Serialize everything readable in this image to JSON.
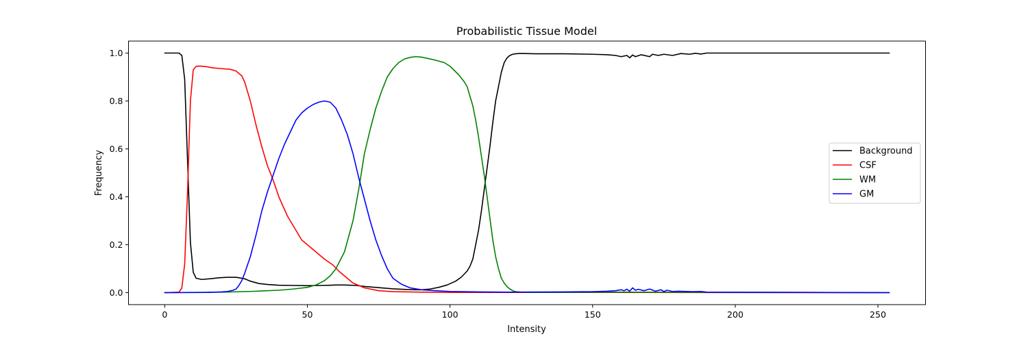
{
  "chart_data": {
    "type": "line",
    "title": "Probabilistic Tissue Model",
    "xlabel": "Intensity",
    "ylabel": "Frequency",
    "xlim": [
      -12.7,
      266.7
    ],
    "ylim": [
      -0.05,
      1.05
    ],
    "xticks": [
      0,
      50,
      100,
      150,
      200,
      250
    ],
    "yticks": [
      0.0,
      0.2,
      0.4,
      0.6,
      0.8,
      1.0
    ],
    "xtick_labels": [
      "0",
      "50",
      "100",
      "150",
      "200",
      "250"
    ],
    "ytick_labels": [
      "0.0",
      "0.2",
      "0.4",
      "0.6",
      "0.8",
      "1.0"
    ],
    "grid": false,
    "legend_position": "center-right",
    "series": [
      {
        "name": "Background",
        "color": "#000000",
        "x": [
          0,
          5,
          6,
          7,
          8,
          9,
          10,
          11,
          13,
          16,
          19,
          22,
          25,
          28,
          30,
          33,
          36,
          40,
          45,
          50,
          55,
          58,
          60,
          63,
          67,
          70,
          75,
          80,
          85,
          88,
          90,
          93,
          96,
          99,
          102,
          104,
          106,
          107,
          108,
          109,
          110,
          111,
          112,
          113,
          114,
          115,
          116,
          117,
          118,
          119,
          120,
          121,
          122,
          123,
          124,
          126,
          130,
          140,
          150,
          155,
          158,
          160,
          162,
          163,
          164,
          165,
          167,
          170,
          171,
          173,
          175,
          178,
          181,
          184,
          186,
          188,
          190,
          200,
          220,
          254
        ],
        "y": [
          1.0,
          1.0,
          0.99,
          0.89,
          0.55,
          0.21,
          0.085,
          0.06,
          0.055,
          0.058,
          0.062,
          0.064,
          0.064,
          0.058,
          0.048,
          0.038,
          0.034,
          0.031,
          0.03,
          0.029,
          0.03,
          0.031,
          0.032,
          0.032,
          0.03,
          0.026,
          0.021,
          0.016,
          0.013,
          0.012,
          0.012,
          0.015,
          0.022,
          0.032,
          0.048,
          0.065,
          0.09,
          0.11,
          0.14,
          0.2,
          0.26,
          0.34,
          0.43,
          0.52,
          0.61,
          0.71,
          0.8,
          0.86,
          0.92,
          0.96,
          0.98,
          0.99,
          0.995,
          0.997,
          0.998,
          0.998,
          0.997,
          0.997,
          0.995,
          0.993,
          0.99,
          0.985,
          0.99,
          0.98,
          0.992,
          0.985,
          0.993,
          0.985,
          0.995,
          0.99,
          0.995,
          0.99,
          0.998,
          0.995,
          0.999,
          0.996,
          1.0,
          1.0,
          1.0,
          1.0
        ]
      },
      {
        "name": "CSF",
        "color": "#ff0000",
        "x": [
          0,
          5,
          6,
          7,
          8,
          9,
          10,
          11,
          12,
          14,
          17,
          20,
          23,
          25,
          27,
          28,
          30,
          32,
          34,
          36,
          38,
          40,
          43,
          46,
          48,
          50,
          53,
          56,
          59,
          61,
          63,
          66,
          70,
          75,
          80,
          90,
          100,
          110,
          254
        ],
        "y": [
          0.0,
          0.002,
          0.02,
          0.12,
          0.42,
          0.8,
          0.93,
          0.944,
          0.946,
          0.944,
          0.938,
          0.935,
          0.932,
          0.925,
          0.905,
          0.88,
          0.8,
          0.7,
          0.61,
          0.53,
          0.47,
          0.4,
          0.32,
          0.26,
          0.22,
          0.2,
          0.17,
          0.14,
          0.115,
          0.09,
          0.07,
          0.04,
          0.02,
          0.008,
          0.004,
          0.002,
          0.001,
          0.001,
          0.0
        ]
      },
      {
        "name": "WM",
        "color": "#008000",
        "x": [
          0,
          20,
          30,
          40,
          45,
          50,
          53,
          56,
          58,
          60,
          63,
          66,
          68,
          70,
          72,
          74,
          76,
          78,
          80,
          82,
          84,
          86,
          88,
          90,
          92,
          95,
          98,
          100,
          103,
          105,
          106,
          107,
          108,
          109,
          110,
          111,
          112,
          113,
          114,
          115,
          116,
          117,
          118,
          119,
          120,
          121,
          122,
          123,
          125,
          130,
          160,
          254
        ],
        "y": [
          0.0,
          0.002,
          0.005,
          0.01,
          0.015,
          0.022,
          0.032,
          0.05,
          0.07,
          0.1,
          0.17,
          0.3,
          0.43,
          0.58,
          0.68,
          0.77,
          0.84,
          0.9,
          0.935,
          0.96,
          0.975,
          0.982,
          0.985,
          0.983,
          0.978,
          0.97,
          0.96,
          0.945,
          0.91,
          0.88,
          0.86,
          0.82,
          0.78,
          0.72,
          0.65,
          0.57,
          0.49,
          0.4,
          0.31,
          0.22,
          0.15,
          0.1,
          0.06,
          0.04,
          0.025,
          0.015,
          0.008,
          0.004,
          0.002,
          0.001,
          0.002,
          0.0
        ]
      },
      {
        "name": "GM",
        "color": "#0000ff",
        "x": [
          0,
          15,
          20,
          22,
          24,
          25,
          26,
          27,
          28,
          30,
          32,
          34,
          36,
          38,
          40,
          42,
          44,
          46,
          48,
          50,
          52,
          54,
          56,
          58,
          60,
          62,
          64,
          66,
          68,
          70,
          72,
          74,
          76,
          78,
          80,
          83,
          86,
          90,
          95,
          100,
          110,
          120,
          140,
          150,
          155,
          158,
          160,
          161,
          162,
          163,
          164,
          165,
          166,
          168,
          170,
          172,
          174,
          175,
          176,
          178,
          180,
          185,
          188,
          190,
          254
        ],
        "y": [
          0.0,
          0.001,
          0.003,
          0.005,
          0.01,
          0.015,
          0.03,
          0.05,
          0.08,
          0.15,
          0.24,
          0.34,
          0.42,
          0.49,
          0.56,
          0.62,
          0.67,
          0.72,
          0.75,
          0.77,
          0.785,
          0.795,
          0.8,
          0.795,
          0.77,
          0.72,
          0.66,
          0.58,
          0.48,
          0.39,
          0.3,
          0.22,
          0.155,
          0.1,
          0.06,
          0.035,
          0.02,
          0.012,
          0.008,
          0.005,
          0.003,
          0.002,
          0.003,
          0.004,
          0.006,
          0.008,
          0.012,
          0.008,
          0.014,
          0.006,
          0.02,
          0.01,
          0.014,
          0.008,
          0.015,
          0.006,
          0.012,
          0.004,
          0.01,
          0.005,
          0.006,
          0.004,
          0.005,
          0.002,
          0.0
        ]
      }
    ]
  }
}
